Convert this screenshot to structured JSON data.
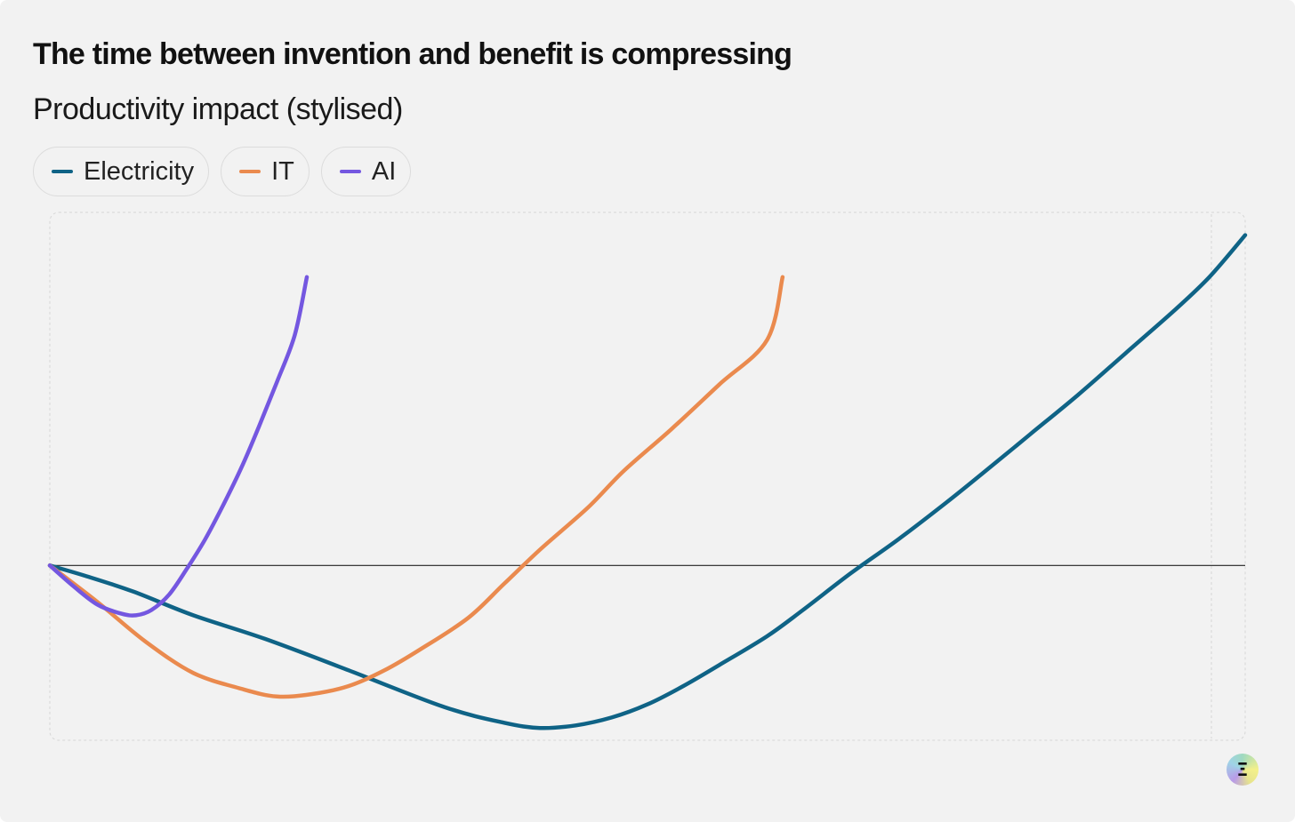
{
  "header": {
    "title": "The time between invention and benefit is compressing",
    "subtitle": "Productivity impact (stylised)"
  },
  "legend": [
    {
      "label": "Electricity",
      "color": "#0f6386"
    },
    {
      "label": "IT",
      "color": "#ea8a4e"
    },
    {
      "label": "AI",
      "color": "#7457e0"
    }
  ],
  "chart_data": {
    "type": "line",
    "title": "The time between invention and benefit is compressing",
    "subtitle": "Productivity impact (stylised)",
    "xlabel": "",
    "ylabel": "",
    "xlim": [
      0,
      100
    ],
    "ylim": [
      -33,
      67
    ],
    "zero_line": true,
    "grid": false,
    "legend_position": "top-left",
    "series": [
      {
        "name": "Electricity",
        "color": "#0f6386",
        "x": [
          0,
          3,
          7,
          12,
          18,
          25,
          33,
          38,
          41,
          44,
          47,
          50,
          53,
          56,
          60,
          63,
          67,
          71,
          75,
          78,
          82,
          86,
          90,
          94,
          97,
          100
        ],
        "y": [
          0,
          -2,
          -5,
          -9.5,
          -14,
          -20,
          -27,
          -30,
          -31,
          -30.5,
          -29,
          -26.5,
          -23,
          -19,
          -13.5,
          -8.5,
          -1.5,
          5,
          12,
          17.5,
          25,
          32.5,
          40.5,
          48.5,
          55,
          63
        ]
      },
      {
        "name": "IT",
        "color": "#ea8a4e",
        "x": [
          0,
          4,
          8,
          12,
          16,
          19,
          22,
          25,
          28,
          31,
          35,
          38,
          41,
          45,
          48,
          52,
          56,
          60,
          61.3
        ],
        "y": [
          0,
          -7,
          -14.5,
          -20.5,
          -23.5,
          -25,
          -24.5,
          -23,
          -20,
          -16,
          -10,
          -3.5,
          3,
          11,
          18,
          26,
          34.5,
          43,
          55
        ]
      },
      {
        "name": "AI",
        "color": "#7457e0",
        "x": [
          0,
          2,
          4,
          6,
          7.2,
          8.5,
          10,
          11.5,
          13,
          14.5,
          16,
          17.5,
          19,
          20.5,
          21.5
        ],
        "y": [
          0,
          -4,
          -7.5,
          -9.2,
          -9.5,
          -8.5,
          -5.5,
          -0.5,
          5,
          11.5,
          18.5,
          26.5,
          35,
          44,
          55
        ]
      }
    ]
  }
}
